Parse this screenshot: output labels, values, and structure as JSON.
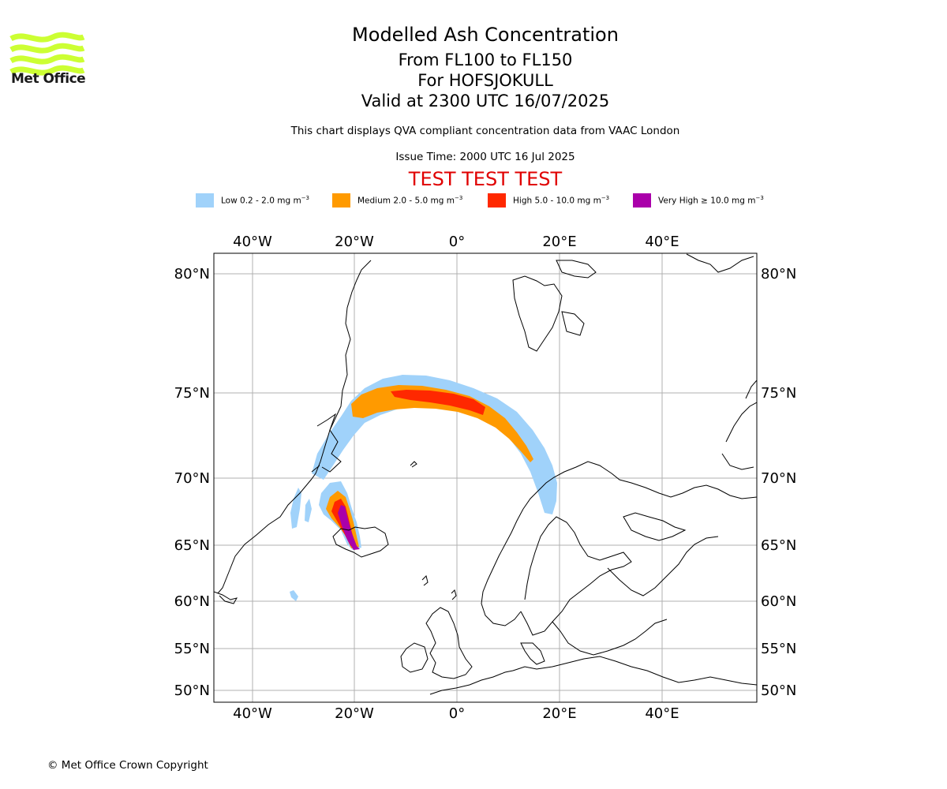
{
  "branding": {
    "logo_text": "Met Office",
    "logo_color": "#ccff33",
    "copyright": "© Met Office Crown Copyright"
  },
  "header": {
    "title": "Modelled Ash Concentration",
    "levels": "From FL100 to FL150",
    "volcano": "For HOFSJOKULL",
    "valid_time": "Valid at 2300 UTC 16/07/2025",
    "subtitle": "This chart displays QVA compliant concentration data from VAAC London",
    "issue_time": "Issue Time: 2000 UTC 16 Jul 2025",
    "test_banner": "TEST TEST TEST",
    "test_banner_color": "#e00000"
  },
  "legend": [
    {
      "label": "Low 0.2 - 2.0 mg m",
      "unit_exp": "−3",
      "color": "#a0d2fa"
    },
    {
      "label": "Medium 2.0 - 5.0 mg m",
      "unit_exp": "−3",
      "color": "#ff9a00"
    },
    {
      "label": "High 5.0 - 10.0 mg m",
      "unit_exp": "−3",
      "color": "#ff2800"
    },
    {
      "label": "Very High  ≥  10.0 mg m",
      "unit_exp": "−3",
      "color": "#aa00aa"
    }
  ],
  "map": {
    "lon_ticks": [
      "40°W",
      "20°W",
      "0°",
      "20°E",
      "40°E"
    ],
    "lat_ticks": [
      "80°N",
      "75°N",
      "70°N",
      "65°N",
      "60°N",
      "55°N",
      "50°N"
    ],
    "gridline_color": "#b0b0b0",
    "coastline_color": "#000000"
  }
}
